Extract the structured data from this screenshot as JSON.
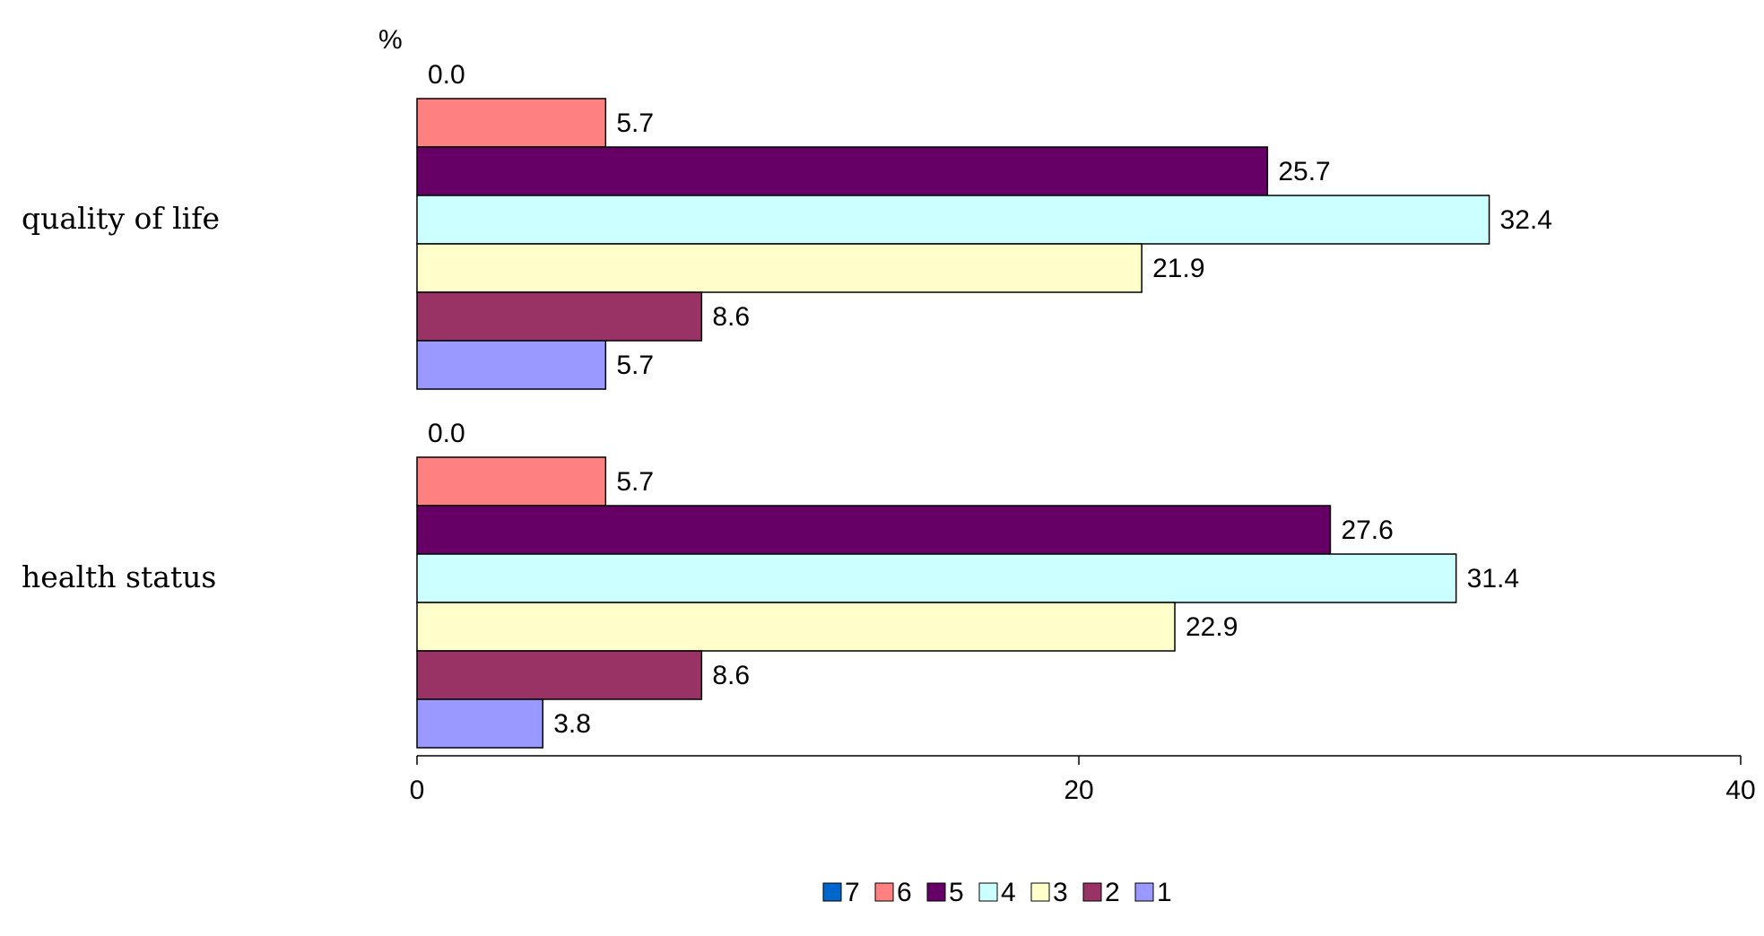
{
  "chart_data": {
    "type": "bar",
    "orientation": "horizontal",
    "unit_label": "%",
    "categories": [
      "quality of life",
      "health status"
    ],
    "series": [
      {
        "name": "7",
        "color": "#0066CC",
        "values": [
          0.0,
          0.0
        ]
      },
      {
        "name": "6",
        "color": "#FF8080",
        "values": [
          5.7,
          5.7
        ]
      },
      {
        "name": "5",
        "color": "#660066",
        "values": [
          25.7,
          27.6
        ]
      },
      {
        "name": "4",
        "color": "#CCFFFF",
        "values": [
          32.4,
          31.4
        ]
      },
      {
        "name": "3",
        "color": "#FFFFCC",
        "values": [
          21.9,
          22.9
        ]
      },
      {
        "name": "2",
        "color": "#993366",
        "values": [
          8.6,
          8.6
        ]
      },
      {
        "name": "1",
        "color": "#9999FF",
        "values": [
          5.7,
          3.8
        ]
      }
    ],
    "data_labels": [
      [
        "0.0",
        "0.0"
      ],
      [
        "5.7",
        "5.7"
      ],
      [
        "25.7",
        "27.6"
      ],
      [
        "32.4",
        "31.4"
      ],
      [
        "21.9",
        "22.9"
      ],
      [
        "8.6",
        "8.6"
      ],
      [
        "5.7",
        "3.8"
      ]
    ],
    "xlim": [
      0,
      40
    ],
    "xticks": [
      "0",
      "20",
      "40"
    ],
    "grid": false,
    "legend_position": "bottom",
    "legend_order": [
      "7",
      "6",
      "5",
      "4",
      "3",
      "2",
      "1"
    ]
  }
}
